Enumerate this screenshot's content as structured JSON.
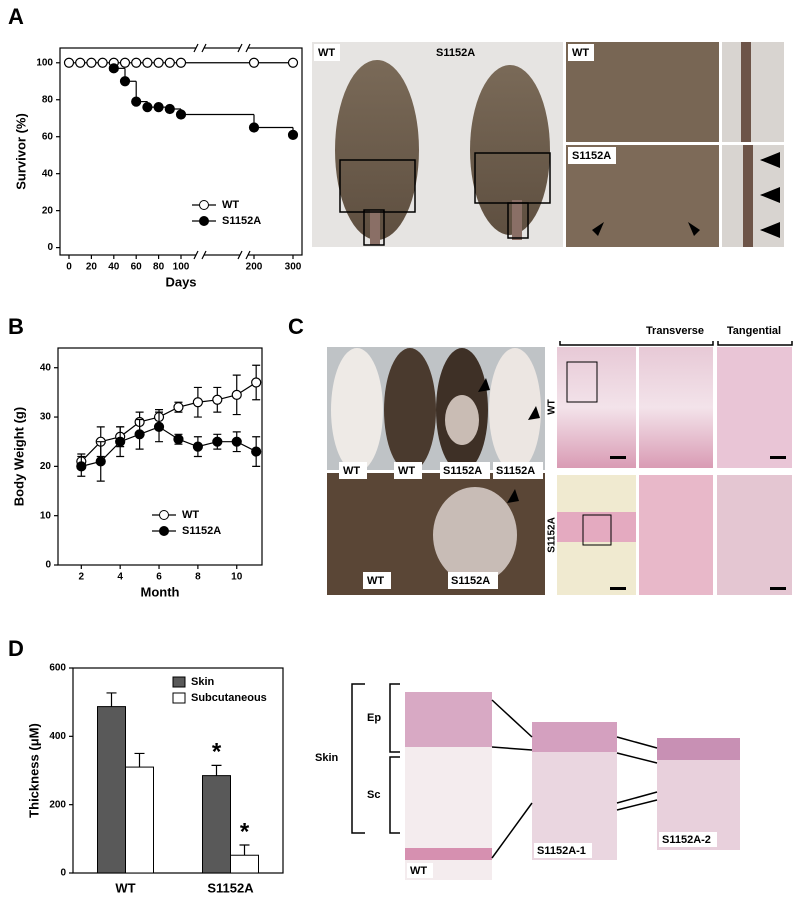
{
  "chart_data": [
    {
      "type": "line",
      "step": true,
      "ylabel": "Survivor (%)",
      "xlabel": "Days",
      "xlim": [
        -8,
        315
      ],
      "xticks": [
        0,
        20,
        40,
        60,
        80,
        100,
        200,
        300
      ],
      "ylim": [
        -4,
        108
      ],
      "yticks": [
        0,
        20,
        40,
        60,
        80,
        100
      ],
      "legend": "lower right",
      "series": [
        {
          "name": "WT",
          "color": "#000000",
          "marker": "open",
          "x": [
            0,
            10,
            20,
            30,
            40,
            50,
            60,
            70,
            80,
            90,
            100,
            200,
            300
          ],
          "values": [
            100,
            100,
            100,
            100,
            100,
            100,
            100,
            100,
            100,
            100,
            100,
            100,
            100
          ]
        },
        {
          "name": "S1152A",
          "color": "#000000",
          "marker": "filled",
          "x": [
            40,
            50,
            60,
            70,
            80,
            90,
            100,
            200,
            300
          ],
          "values": [
            97,
            90,
            79,
            76,
            76,
            75,
            72,
            65,
            61
          ]
        }
      ]
    },
    {
      "type": "line",
      "ylabel": "Body Weight (g)",
      "xlabel": "Month",
      "xlim": [
        0.8,
        11.3
      ],
      "xticks": [
        2,
        4,
        6,
        8,
        10
      ],
      "ylim": [
        0,
        44
      ],
      "yticks": [
        0,
        10,
        20,
        30,
        40
      ],
      "legend": "lower right",
      "series": [
        {
          "name": "WT",
          "color": "#000000",
          "marker": "open",
          "x": [
            2,
            3,
            4,
            5,
            6,
            7,
            8,
            9,
            10,
            11
          ],
          "values": [
            21,
            25,
            26,
            29,
            30,
            32,
            33,
            33.5,
            34.5,
            37
          ],
          "errors": [
            1.5,
            3,
            2,
            2,
            1.5,
            1,
            3,
            2.5,
            4,
            3.5
          ]
        },
        {
          "name": "S1152A",
          "color": "#000000",
          "marker": "filled",
          "x": [
            2,
            3,
            4,
            5,
            6,
            7,
            8,
            9,
            10,
            11
          ],
          "values": [
            20,
            21,
            25,
            26.5,
            28,
            25.5,
            24,
            25,
            25,
            23
          ],
          "errors": [
            2,
            4,
            3,
            3,
            3,
            1,
            2,
            1.5,
            2,
            3
          ]
        }
      ]
    },
    {
      "type": "bar",
      "ylabel": "Thickness (μM)",
      "categories": [
        "WT",
        "S1152A"
      ],
      "ylim": [
        0,
        600
      ],
      "yticks": [
        0,
        200,
        400,
        600
      ],
      "legend": "upper right",
      "series": [
        {
          "name": "Skin",
          "color": "#595959",
          "values": [
            487,
            285
          ],
          "errors": [
            40,
            30
          ]
        },
        {
          "name": "Subcutaneous",
          "color": "#ffffff",
          "values": [
            310,
            52
          ],
          "errors": [
            40,
            30
          ]
        }
      ],
      "annotations": [
        "*",
        "*"
      ]
    }
  ],
  "figure": {
    "panels": [
      "A",
      "B",
      "C",
      "D"
    ],
    "a_photo": [
      "WT",
      "S1152A",
      "WT",
      "S1152A"
    ],
    "c_photo": [
      "WT",
      "WT",
      "S1152A",
      "S1152A",
      "WT",
      "S1152A"
    ],
    "c_histology": {
      "headers": [
        "Transverse",
        "Tangential"
      ],
      "rows": [
        "WT",
        "S1152A"
      ]
    },
    "d_histology": [
      "Skin",
      "Ep",
      "Sc",
      "WT",
      "S1152A-1",
      "S1152A-2"
    ]
  }
}
